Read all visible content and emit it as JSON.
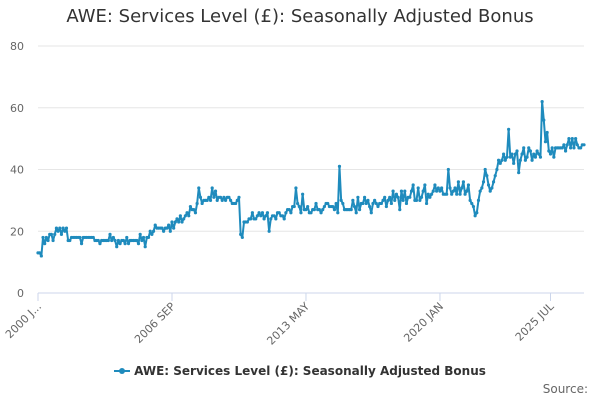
{
  "colors": {
    "series": "#1f8bbd",
    "grid": "#e6e6e6",
    "axis": "#ccd6eb",
    "text": "#333333",
    "muted": "#666666"
  },
  "credits": "Source:",
  "chart_data": {
    "type": "line",
    "title": "AWE: Services Level (£): Seasonally Adjusted Bonus",
    "xlabel": "",
    "ylabel": "",
    "ylim": [
      0,
      80
    ],
    "yticks": [
      0,
      20,
      40,
      60,
      80
    ],
    "x_tick_labels": [
      "2000 J...",
      "2006 SEP",
      "2013 MAY",
      "2020 JAN",
      "2025 JUL"
    ],
    "x_tick_indices": [
      0,
      80,
      160,
      240,
      306
    ],
    "legend": "bottom-center",
    "grid": true,
    "series": [
      {
        "name": "AWE: Services Level (£): Seasonally Adjusted Bonus",
        "period_start": "2000 JAN",
        "period_end": "2025 JUL",
        "frequency": "monthly",
        "values": [
          13,
          13,
          12,
          18,
          16,
          18,
          17,
          19,
          19,
          17,
          19,
          21,
          20,
          21,
          19,
          21,
          20,
          21,
          17,
          17,
          18,
          18,
          18,
          18,
          18,
          18,
          16,
          18,
          18,
          18,
          18,
          18,
          18,
          18,
          17,
          17,
          17,
          16,
          17,
          17,
          17,
          17,
          17,
          19,
          17,
          18,
          17,
          15,
          17,
          16,
          17,
          17,
          16,
          18,
          16,
          17,
          17,
          17,
          17,
          17,
          16,
          19,
          17,
          18,
          15,
          18,
          18,
          20,
          19,
          20,
          22,
          21,
          21,
          21,
          21,
          20,
          21,
          21,
          22,
          20,
          23,
          21,
          23,
          24,
          23,
          25,
          23,
          24,
          25,
          26,
          25,
          28,
          27,
          27,
          26,
          29,
          34,
          31,
          29,
          30,
          30,
          30,
          31,
          30,
          34,
          31,
          33,
          30,
          31,
          31,
          30,
          31,
          30,
          31,
          31,
          30,
          29,
          29,
          29,
          30,
          31,
          19,
          18,
          23,
          23,
          23,
          24,
          24,
          26,
          24,
          24,
          25,
          26,
          25,
          26,
          24,
          25,
          26,
          20,
          24,
          25,
          25,
          24,
          26,
          26,
          25,
          25,
          24,
          26,
          27,
          27,
          26,
          28,
          28,
          34,
          29,
          28,
          26,
          32,
          27,
          27,
          28,
          26,
          26,
          27,
          27,
          29,
          27,
          27,
          26,
          27,
          28,
          29,
          29,
          28,
          28,
          28,
          27,
          29,
          26,
          41,
          30,
          29,
          27,
          27,
          27,
          27,
          27,
          30,
          28,
          26,
          31,
          27,
          29,
          29,
          31,
          29,
          30,
          28,
          26,
          29,
          30,
          29,
          28,
          29,
          29,
          30,
          31,
          28,
          30,
          31,
          29,
          33,
          30,
          32,
          31,
          27,
          33,
          30,
          33,
          29,
          31,
          31,
          33,
          35,
          30,
          30,
          34,
          30,
          31,
          33,
          35,
          29,
          32,
          31,
          32,
          33,
          35,
          33,
          34,
          33,
          34,
          32,
          32,
          32,
          40,
          34,
          32,
          33,
          34,
          32,
          36,
          32,
          34,
          36,
          32,
          33,
          35,
          30,
          29,
          28,
          25,
          26,
          30,
          33,
          34,
          36,
          40,
          38,
          35,
          33,
          34,
          36,
          38,
          40,
          43,
          42,
          43,
          45,
          43,
          44,
          53,
          44,
          45,
          42,
          45,
          46,
          39,
          43,
          45,
          47,
          43,
          44,
          47,
          46,
          43,
          45,
          44,
          46,
          45,
          44,
          62,
          56,
          49,
          52,
          46,
          45,
          47,
          44,
          47,
          47,
          47,
          47,
          47,
          48,
          46,
          48,
          50,
          47,
          50,
          47,
          50,
          48,
          47,
          47,
          48,
          48
        ]
      }
    ]
  }
}
